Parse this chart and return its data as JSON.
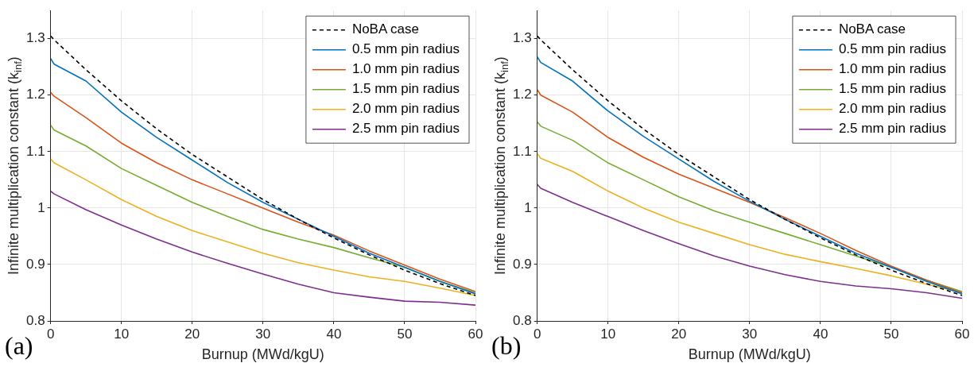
{
  "chart_data": [
    {
      "type": "line",
      "xlabel": "Burnup (MWd/kgU)",
      "ylabel": "Infinite multiplication constant (k$_{inf}$)",
      "annotations": [
        "(a)"
      ],
      "x": [
        0,
        0.5,
        5,
        10,
        15,
        20,
        25,
        30,
        35,
        40,
        45,
        50,
        55,
        60
      ],
      "xlim": [
        0,
        60
      ],
      "xticks": [
        0,
        10,
        20,
        30,
        40,
        50,
        60
      ],
      "ylim": [
        0.8,
        1.35
      ],
      "yticks": [
        0.8,
        0.9,
        1,
        1.1,
        1.2,
        1.3
      ],
      "grid": true,
      "legend": "top right",
      "marker": "none",
      "series": [
        {
          "name": "NoBA case",
          "color": "#000000",
          "line_style": "dashed",
          "values": [
            1.305,
            1.298,
            1.245,
            1.19,
            1.14,
            1.095,
            1.055,
            1.015,
            0.98,
            0.947,
            0.917,
            0.89,
            0.866,
            0.845
          ]
        },
        {
          "name": "0.5 mm pin radius",
          "color": "#0072bd",
          "line_style": "solid",
          "values": [
            1.265,
            1.255,
            1.225,
            1.17,
            1.125,
            1.085,
            1.045,
            1.01,
            0.98,
            0.95,
            0.92,
            0.895,
            0.87,
            0.848
          ]
        },
        {
          "name": "1.0 mm pin radius",
          "color": "#d95319",
          "line_style": "solid",
          "values": [
            1.205,
            1.198,
            1.16,
            1.115,
            1.08,
            1.05,
            1.025,
            1.0,
            0.975,
            0.952,
            0.924,
            0.899,
            0.874,
            0.852
          ]
        },
        {
          "name": "1.5 mm pin radius",
          "color": "#77ac30",
          "line_style": "solid",
          "values": [
            1.147,
            1.138,
            1.11,
            1.07,
            1.04,
            1.01,
            0.985,
            0.962,
            0.945,
            0.93,
            0.912,
            0.895,
            0.87,
            0.85
          ]
        },
        {
          "name": "2.0 mm pin radius",
          "color": "#edb120",
          "line_style": "solid",
          "values": [
            1.087,
            1.08,
            1.05,
            1.015,
            0.985,
            0.96,
            0.94,
            0.92,
            0.903,
            0.89,
            0.878,
            0.87,
            0.858,
            0.845
          ]
        },
        {
          "name": "2.5 mm pin radius",
          "color": "#7e2f8e",
          "line_style": "solid",
          "values": [
            1.03,
            1.025,
            0.997,
            0.97,
            0.945,
            0.922,
            0.902,
            0.883,
            0.865,
            0.85,
            0.842,
            0.835,
            0.833,
            0.828
          ]
        }
      ]
    },
    {
      "type": "line",
      "xlabel": "Burnup (MWd/kgU)",
      "ylabel": "Infinite multiplication constant (k$_{inf}$)",
      "annotations": [
        "(b)"
      ],
      "x": [
        0,
        0.5,
        5,
        10,
        15,
        20,
        25,
        30,
        35,
        40,
        45,
        50,
        55,
        60
      ],
      "xlim": [
        0,
        60
      ],
      "xticks": [
        0,
        10,
        20,
        30,
        40,
        50,
        60
      ],
      "ylim": [
        0.8,
        1.35
      ],
      "yticks": [
        0.8,
        0.9,
        1,
        1.1,
        1.2,
        1.3
      ],
      "grid": true,
      "legend": "top right",
      "marker": "none",
      "series": [
        {
          "name": "NoBA case",
          "color": "#000000",
          "line_style": "dashed",
          "values": [
            1.305,
            1.298,
            1.245,
            1.19,
            1.14,
            1.095,
            1.055,
            1.015,
            0.98,
            0.947,
            0.917,
            0.89,
            0.866,
            0.845
          ]
        },
        {
          "name": "0.5 mm pin radius",
          "color": "#0072bd",
          "line_style": "solid",
          "values": [
            1.268,
            1.258,
            1.225,
            1.172,
            1.127,
            1.087,
            1.047,
            1.012,
            0.98,
            0.95,
            0.92,
            0.895,
            0.87,
            0.848
          ]
        },
        {
          "name": "1.0 mm pin radius",
          "color": "#d95319",
          "line_style": "solid",
          "values": [
            1.21,
            1.2,
            1.17,
            1.125,
            1.09,
            1.06,
            1.035,
            1.01,
            0.983,
            0.955,
            0.925,
            0.897,
            0.872,
            0.85
          ]
        },
        {
          "name": "1.5 mm pin radius",
          "color": "#77ac30",
          "line_style": "solid",
          "values": [
            1.153,
            1.145,
            1.12,
            1.08,
            1.05,
            1.02,
            0.995,
            0.975,
            0.955,
            0.935,
            0.915,
            0.895,
            0.872,
            0.852
          ]
        },
        {
          "name": "2.0 mm pin radius",
          "color": "#edb120",
          "line_style": "solid",
          "values": [
            1.097,
            1.088,
            1.065,
            1.03,
            1.0,
            0.975,
            0.955,
            0.935,
            0.918,
            0.905,
            0.893,
            0.88,
            0.865,
            0.85
          ]
        },
        {
          "name": "2.5 mm pin radius",
          "color": "#7e2f8e",
          "line_style": "solid",
          "values": [
            1.042,
            1.035,
            1.01,
            0.985,
            0.96,
            0.937,
            0.915,
            0.897,
            0.882,
            0.87,
            0.862,
            0.857,
            0.85,
            0.84
          ]
        }
      ]
    }
  ]
}
